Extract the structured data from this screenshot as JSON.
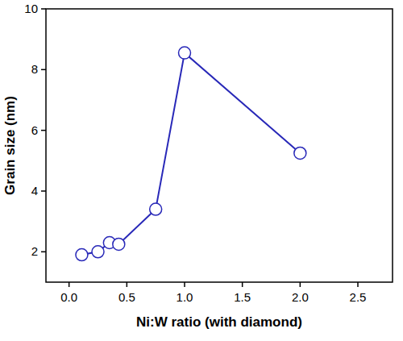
{
  "chart_data": {
    "type": "line",
    "x_label": "Ni:W ratio (with diamond)",
    "y_label": "Grain size (nm)",
    "x": [
      0.11,
      0.25,
      0.35,
      0.43,
      0.75,
      1.0,
      2.0
    ],
    "series": [
      {
        "name": null,
        "color": "#2828b8",
        "marker": "circle",
        "line_style": "solid",
        "values": [
          1.9,
          2.0,
          2.3,
          2.25,
          3.4,
          8.55,
          5.25
        ]
      }
    ],
    "xlim": [
      -0.2,
      2.8
    ],
    "xticks": [
      {
        "value": 0,
        "label": "0.0"
      },
      0.5,
      {
        "value": 1,
        "label": "1.0"
      },
      1.5,
      {
        "value": 2,
        "label": "2.0"
      },
      2.5
    ],
    "ylim": [
      1,
      10
    ],
    "yticks": [
      2,
      4,
      6,
      8,
      10
    ],
    "grid": false
  }
}
